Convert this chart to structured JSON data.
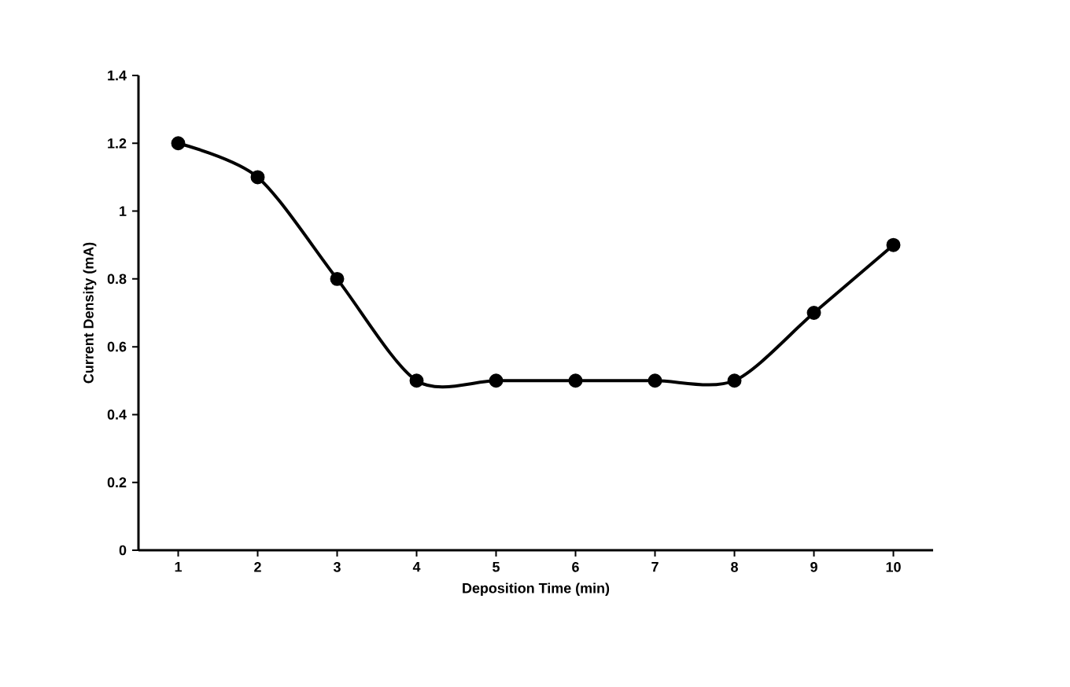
{
  "chart_data": {
    "type": "line",
    "xlabel": "Deposition Time (min)",
    "ylabel": "Current Density (mA)",
    "categories": [
      "1",
      "2",
      "3",
      "4",
      "5",
      "6",
      "7",
      "8",
      "9",
      "10"
    ],
    "series": [
      {
        "color": "#000000",
        "values": [
          1.2,
          1.1,
          0.8,
          0.5,
          0.5,
          0.5,
          0.5,
          0.5,
          0.7,
          0.9
        ]
      }
    ],
    "ylim": [
      0,
      1.4
    ],
    "yticks": [
      0,
      0.2,
      0.4,
      0.6,
      0.8,
      1,
      1.2,
      1.4
    ],
    "marker": "circle",
    "line_style": "solid",
    "grid": false
  }
}
